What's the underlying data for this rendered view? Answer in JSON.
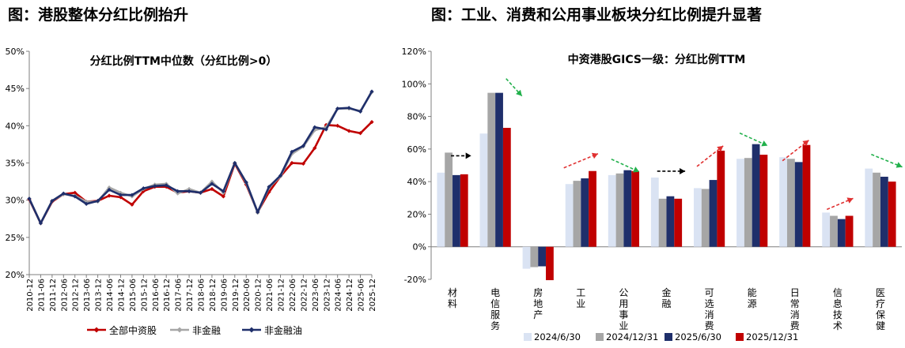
{
  "left_panel": {
    "heading": "图：港股整体分红比例抬升"
  },
  "right_panel": {
    "heading": "图：工业、消费和公用事业板块分红比例提升显著"
  },
  "colors": {
    "red": "#c00000",
    "gray": "#a6a6a6",
    "navy": "#1f2f6b",
    "light_blue": "#dae3f3",
    "arrow_red": "#e03030",
    "arrow_green": "#21b04b",
    "arrow_black": "#000000"
  },
  "chart_data": [
    {
      "type": "line",
      "title": "分红比例TTM中位数（分红比例>0）",
      "ylim": [
        20,
        50
      ],
      "yticks": [
        "20%",
        "25%",
        "30%",
        "35%",
        "40%",
        "45%",
        "50%"
      ],
      "y_tick_values": [
        20,
        25,
        30,
        35,
        40,
        45,
        50
      ],
      "x": [
        "2010-12",
        "2011-06",
        "2011-12",
        "2012-06",
        "2012-12",
        "2013-06",
        "2013-12",
        "2014-06",
        "2014-12",
        "2015-06",
        "2015-12",
        "2016-06",
        "2016-12",
        "2017-06",
        "2017-12",
        "2018-06",
        "2018-12",
        "2019-06",
        "2019-12",
        "2020-06",
        "2020-12",
        "2021-06",
        "2021-12",
        "2022-06",
        "2022-12",
        "2023-06",
        "2023-12",
        "2024-06",
        "2024-12",
        "2025-06",
        "2025-12"
      ],
      "series": [
        {
          "name": "全部中资股",
          "color": "#c00000",
          "marker": "diamond",
          "values": [
            30.1,
            26.9,
            29.8,
            30.8,
            31.0,
            29.8,
            29.9,
            30.6,
            30.4,
            29.4,
            31.2,
            31.8,
            31.8,
            31.0,
            31.2,
            31.0,
            31.5,
            30.5,
            34.9,
            32.1,
            28.4,
            31.1,
            33.2,
            35.0,
            34.9,
            37.0,
            40.1,
            40.0,
            39.3,
            39.0,
            40.5
          ]
        },
        {
          "name": "非金融",
          "color": "#a6a6a6",
          "marker": "diamond",
          "values": [
            30.2,
            26.9,
            29.9,
            30.8,
            30.6,
            29.8,
            29.8,
            31.7,
            31.0,
            30.5,
            31.5,
            32.1,
            32.2,
            30.9,
            31.5,
            31.0,
            32.5,
            31.0,
            35.0,
            32.3,
            28.3,
            31.7,
            33.2,
            36.2,
            37.2,
            39.4,
            39.8,
            42.3,
            42.3,
            42.0,
            44.5
          ]
        },
        {
          "name": "非金融油",
          "color": "#1f2f6b",
          "marker": "diamond",
          "values": [
            30.2,
            26.9,
            29.9,
            30.9,
            30.5,
            29.5,
            29.9,
            31.4,
            30.7,
            30.7,
            31.6,
            31.9,
            32.0,
            31.2,
            31.2,
            31.0,
            32.2,
            31.2,
            35.0,
            32.4,
            28.4,
            31.8,
            33.3,
            36.5,
            37.3,
            39.8,
            39.5,
            42.3,
            42.4,
            41.9,
            44.6
          ]
        }
      ],
      "legend_position": "bottom"
    },
    {
      "type": "bar",
      "title": "中资港股GICS一级：分红比例TTM",
      "ylim": [
        -20,
        120
      ],
      "yticks": [
        "-20%",
        "0%",
        "20%",
        "40%",
        "60%",
        "80%",
        "100%",
        "120%"
      ],
      "y_tick_values": [
        -20,
        0,
        20,
        40,
        60,
        80,
        100,
        120
      ],
      "categories": [
        "材料",
        "电信服务",
        "房地产",
        "工业",
        "公用事业",
        "金融",
        "可选消费",
        "能源",
        "日常消费",
        "信息技术",
        "医疗保健"
      ],
      "series": [
        {
          "name": "2024/6/30",
          "color": "#dae3f3",
          "values": [
            45.5,
            69.5,
            -13.5,
            38.5,
            44.0,
            42.5,
            36.0,
            54.0,
            55.0,
            21.0,
            48.0
          ]
        },
        {
          "name": "2024/12/31",
          "color": "#a6a6a6",
          "values": [
            57.8,
            94.5,
            -12.5,
            40.5,
            45.0,
            29.5,
            35.5,
            54.5,
            54.0,
            19.0,
            45.5
          ]
        },
        {
          "name": "2025/6/30",
          "color": "#1f2f6b",
          "values": [
            44.0,
            94.5,
            -12.0,
            42.0,
            47.0,
            31.0,
            41.0,
            63.0,
            52.0,
            17.0,
            43.0
          ]
        },
        {
          "name": "2025/12/31",
          "color": "#c00000",
          "values": [
            44.5,
            73.0,
            -20.5,
            46.5,
            46.5,
            29.5,
            59.0,
            56.5,
            62.5,
            19.0,
            40.0
          ]
        }
      ],
      "trend_arrows": [
        "flat-black",
        "down-green",
        "none",
        "up-red",
        "down-green",
        "flat-black",
        "up-red",
        "down-green",
        "up-red",
        "up-red",
        "down-green"
      ],
      "legend_position": "bottom"
    }
  ]
}
